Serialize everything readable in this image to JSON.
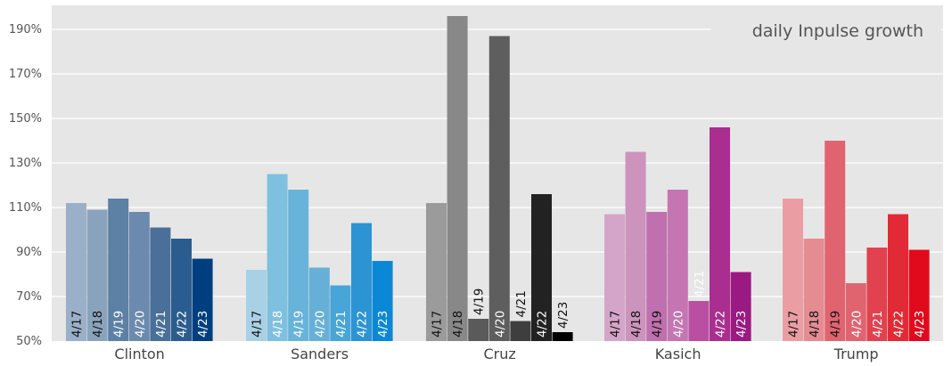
{
  "chart_data": {
    "type": "bar",
    "title": "daily Inpulse growth",
    "xlabel": "",
    "ylabel": "",
    "ylim": [
      50,
      200
    ],
    "y_ticks": [
      "50%",
      "70%",
      "90%",
      "110%",
      "130%",
      "150%",
      "170%",
      "190%"
    ],
    "y_tick_values": [
      50,
      70,
      90,
      110,
      130,
      150,
      170,
      190
    ],
    "grid": true,
    "groups": [
      {
        "name": "Clinton",
        "dates": [
          "4/17",
          "4/18",
          "4/19",
          "4/20",
          "4/21",
          "4/22",
          "4/23"
        ],
        "values": [
          112,
          109,
          114,
          108,
          101,
          96,
          87
        ],
        "colors": [
          "#9ab0c8",
          "#8aa3bd",
          "#5d80a5",
          "#6b8aae",
          "#4a6f98",
          "#2b5c8f",
          "#003f7f"
        ]
      },
      {
        "name": "Sanders",
        "dates": [
          "4/17",
          "4/18",
          "4/19",
          "4/20",
          "4/21",
          "4/22",
          "4/23"
        ],
        "values": [
          82,
          125,
          118,
          83,
          75,
          103,
          86
        ],
        "colors": [
          "#a9d1e6",
          "#7ec0e0",
          "#67b3da",
          "#66b0d8",
          "#47a5d8",
          "#2c94d3",
          "#0a88d6"
        ]
      },
      {
        "name": "Cruz",
        "dates": [
          "4/17",
          "4/18",
          "4/19",
          "4/20",
          "4/21",
          "4/22",
          "4/23"
        ],
        "values": [
          112,
          196,
          60,
          187,
          59,
          116,
          54
        ],
        "colors": [
          "#9b9b9b",
          "#888888",
          "#5a5a5a",
          "#5e5e5e",
          "#3e3e3e",
          "#222222",
          "#000000"
        ]
      },
      {
        "name": "Kasich",
        "dates": [
          "4/17",
          "4/18",
          "4/19",
          "4/20",
          "4/21",
          "4/22",
          "4/23"
        ],
        "values": [
          107,
          135,
          108,
          118,
          68,
          146,
          81
        ],
        "colors": [
          "#d4a5c9",
          "#cc93bd",
          "#c070ae",
          "#c575b2",
          "#ba4fa1",
          "#aa2e8f",
          "#9b1982"
        ]
      },
      {
        "name": "Trump",
        "dates": [
          "4/17",
          "4/18",
          "4/19",
          "4/20",
          "4/21",
          "4/22",
          "4/23"
        ],
        "values": [
          114,
          96,
          140,
          76,
          92,
          107,
          91
        ],
        "colors": [
          "#ea9ea4",
          "#e58b92",
          "#e06470",
          "#e06470",
          "#e2424f",
          "#e12a36",
          "#e00a1c"
        ]
      }
    ]
  }
}
